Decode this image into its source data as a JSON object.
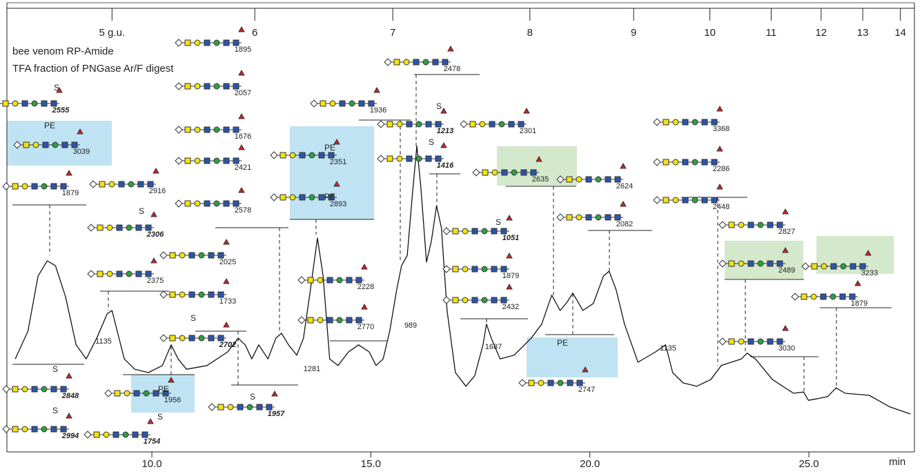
{
  "chart_data": {
    "type": "line",
    "title": "bee venom RP-Amide",
    "subtitle": "TFA fraction of PNGase Ar/F digest",
    "xlabel": "min",
    "color": "#111111",
    "xlim": [
      6.69,
      27.41
    ],
    "ylim": [
      0,
      100
    ],
    "xticks": [
      {
        "value": 10,
        "label": "10.0"
      },
      {
        "value": 15,
        "label": "15.0"
      },
      {
        "value": 20,
        "label": "20.0"
      },
      {
        "value": 25,
        "label": "25.0"
      }
    ],
    "top_ticks": [
      {
        "value": 9.09,
        "label": "5 g.u."
      },
      {
        "value": 12.35,
        "label": "6"
      },
      {
        "value": 15.5,
        "label": "7"
      },
      {
        "value": 18.63,
        "label": "8"
      },
      {
        "value": 21.0,
        "label": "9"
      },
      {
        "value": 22.74,
        "label": "10"
      },
      {
        "value": 24.14,
        "label": "11"
      },
      {
        "value": 25.28,
        "label": "12"
      },
      {
        "value": 26.23,
        "label": "13"
      },
      {
        "value": 27.09,
        "label": "14"
      }
    ],
    "x": [
      6.88,
      7.17,
      7.4,
      7.61,
      7.8,
      8.03,
      8.27,
      8.5,
      8.74,
      8.98,
      9.09,
      9.21,
      9.37,
      9.61,
      9.92,
      10.24,
      10.44,
      10.6,
      10.79,
      11.26,
      11.73,
      11.97,
      12.13,
      12.28,
      12.44,
      12.65,
      12.83,
      12.96,
      13.12,
      13.31,
      13.46,
      13.62,
      13.78,
      13.91,
      14.06,
      14.25,
      14.49,
      14.72,
      14.96,
      15.12,
      15.28,
      15.43,
      15.59,
      15.7,
      15.83,
      15.95,
      16.05,
      16.14,
      16.27,
      16.38,
      16.5,
      16.61,
      16.74,
      16.93,
      17.17,
      17.37,
      17.56,
      17.64,
      17.75,
      17.95,
      18.27,
      18.66,
      18.9,
      19.13,
      19.32,
      19.48,
      19.61,
      19.84,
      20.08,
      20.31,
      20.44,
      20.6,
      20.79,
      21.1,
      21.5,
      21.73,
      21.89,
      22.13,
      22.44,
      22.76,
      23.0,
      23.23,
      23.46,
      23.59,
      23.78,
      24.17,
      24.65,
      24.88,
      24.99,
      25.2,
      25.43,
      25.62,
      25.83,
      26.38,
      26.85,
      27.32
    ],
    "values": [
      23.3,
      30,
      43.3,
      47,
      45.8,
      38.3,
      26.7,
      23.3,
      28.3,
      34.2,
      35,
      30,
      23.3,
      20.8,
      20,
      21.7,
      26.7,
      23.3,
      20.8,
      21.7,
      25,
      28.3,
      26.7,
      23.3,
      26.7,
      23.3,
      28.3,
      29.5,
      26.7,
      24.2,
      28.3,
      40,
      52.5,
      43.3,
      23.3,
      21.7,
      25,
      26.7,
      25,
      21.7,
      23.3,
      30,
      40,
      45.8,
      48.3,
      63.3,
      74.7,
      65,
      46.7,
      51.7,
      60.3,
      55,
      35,
      20,
      16.7,
      19.2,
      26.7,
      31.7,
      28.3,
      23.3,
      24.2,
      28.3,
      31.7,
      38.7,
      35,
      37,
      39.2,
      35,
      36.7,
      43.3,
      44.5,
      40,
      31.7,
      22.5,
      25,
      26.7,
      20,
      17.5,
      16.7,
      18.3,
      21.7,
      22.5,
      23.3,
      24.7,
      23.3,
      18.3,
      15,
      15.3,
      13.3,
      13.7,
      14.2,
      16.3,
      15,
      14.5,
      11.7,
      10
    ],
    "annotations": [
      {
        "text": "2555",
        "style": "bold-italic"
      },
      {
        "text": "3039"
      },
      {
        "text": "1879"
      },
      {
        "text": "2916"
      },
      {
        "text": "2306",
        "style": "bold-italic"
      },
      {
        "text": "2375"
      },
      {
        "text": "1895"
      },
      {
        "text": "2057"
      },
      {
        "text": "1676"
      },
      {
        "text": "2421"
      },
      {
        "text": "2578"
      },
      {
        "text": "2025"
      },
      {
        "text": "1733"
      },
      {
        "text": "2702",
        "style": "bold-italic"
      },
      {
        "text": "1957",
        "style": "bold-italic"
      },
      {
        "text": "2351"
      },
      {
        "text": "2893"
      },
      {
        "text": "1936"
      },
      {
        "text": "2478"
      },
      {
        "text": "1213",
        "style": "bold-italic"
      },
      {
        "text": "1416",
        "style": "bold-italic"
      },
      {
        "text": "2228"
      },
      {
        "text": "2770"
      },
      {
        "text": "989"
      },
      {
        "text": "1281"
      },
      {
        "text": "2301"
      },
      {
        "text": "2635"
      },
      {
        "text": "1051",
        "style": "bold-italic"
      },
      {
        "text": "1879"
      },
      {
        "text": "2432"
      },
      {
        "text": "1687"
      },
      {
        "text": "2624"
      },
      {
        "text": "2082"
      },
      {
        "text": "2747"
      },
      {
        "text": "1135"
      },
      {
        "text": "1135"
      },
      {
        "text": "3368"
      },
      {
        "text": "2286"
      },
      {
        "text": "2448"
      },
      {
        "text": "2827"
      },
      {
        "text": "2489"
      },
      {
        "text": "3030"
      },
      {
        "text": "3233"
      },
      {
        "text": "1879"
      },
      {
        "text": "2848",
        "style": "bold-italic"
      },
      {
        "text": "2994",
        "style": "bold-italic"
      },
      {
        "text": "1956"
      },
      {
        "text": "1754",
        "style": "bold-italic"
      }
    ],
    "modifications": [
      {
        "text": "S"
      },
      {
        "text": "S"
      },
      {
        "text": "S"
      },
      {
        "text": "S"
      },
      {
        "text": "S"
      },
      {
        "text": "S"
      },
      {
        "text": "S"
      },
      {
        "text": "S"
      },
      {
        "text": "S"
      },
      {
        "text": "S"
      },
      {
        "text": "PE"
      },
      {
        "text": "PE"
      },
      {
        "text": "PE"
      },
      {
        "text": "PE"
      },
      {
        "text": "PE"
      }
    ]
  }
}
